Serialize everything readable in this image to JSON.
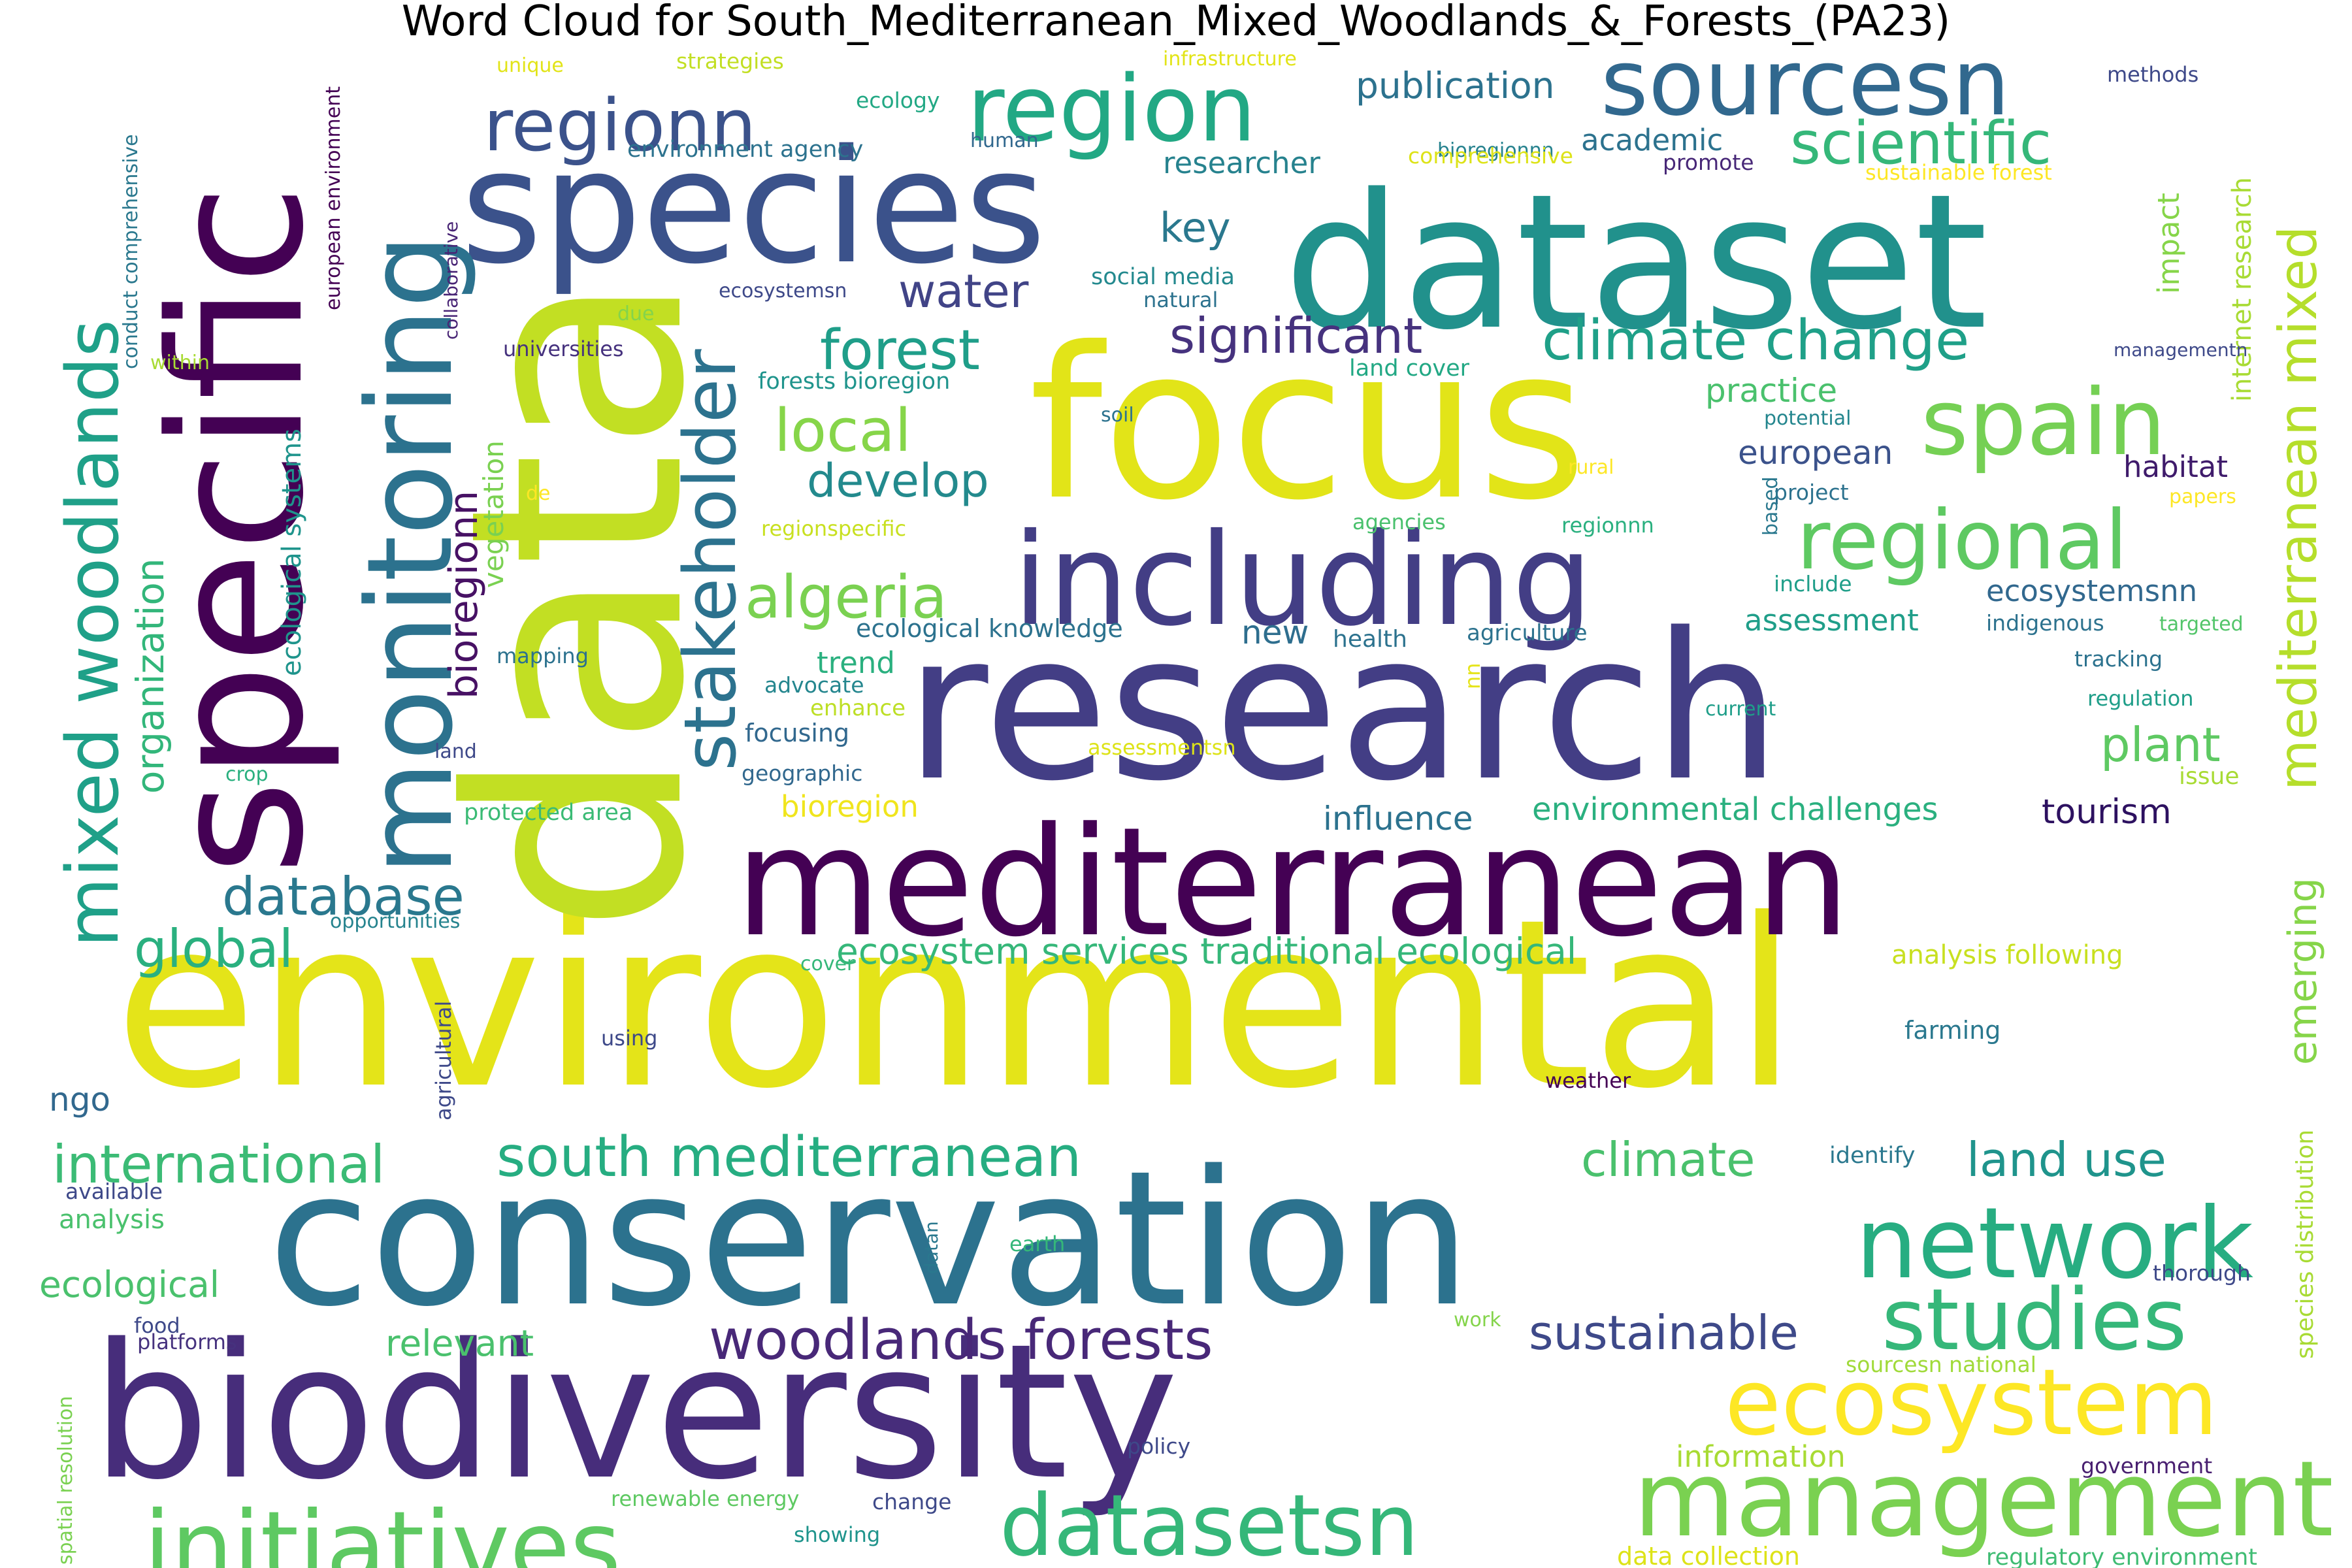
{
  "title": "Word Cloud for South_Mediterranean_Mixed_Woodlands_&_Forests_(PA23)",
  "words": [
    {
      "text": "environmental",
      "color": "#e4e419"
    },
    {
      "text": "data",
      "color": "#c2df23"
    },
    {
      "text": "research",
      "color": "#433e85"
    },
    {
      "text": "dataset",
      "color": "#21918c"
    },
    {
      "text": "focus",
      "color": "#e2e418"
    },
    {
      "text": "conservation",
      "color": "#2c728e"
    },
    {
      "text": "biodiversity",
      "color": "#472d7b"
    },
    {
      "text": "mediterranean",
      "color": "#440154"
    },
    {
      "text": "specific",
      "color": "#440154"
    },
    {
      "text": "species",
      "color": "#3b528b"
    },
    {
      "text": "including",
      "color": "#433e85"
    },
    {
      "text": "monitoring",
      "color": "#2c728e"
    },
    {
      "text": "management",
      "color": "#7ad151"
    },
    {
      "text": "network",
      "color": "#27ad81"
    },
    {
      "text": "initiatives",
      "color": "#5ec962"
    },
    {
      "text": "ecosystem",
      "color": "#fde725"
    },
    {
      "text": "region",
      "color": "#22a884"
    },
    {
      "text": "sourcesn",
      "color": "#31688e"
    },
    {
      "text": "regionn",
      "color": "#3b528b"
    },
    {
      "text": "spain",
      "color": "#75d054"
    },
    {
      "text": "regional",
      "color": "#5ec962"
    },
    {
      "text": "studies",
      "color": "#35b779"
    },
    {
      "text": "datasetsn",
      "color": "#35b779"
    },
    {
      "text": "mixed woodlands",
      "color": "#1fa088"
    },
    {
      "text": "stakeholder",
      "color": "#2c728e"
    },
    {
      "text": "scientific",
      "color": "#35b779"
    },
    {
      "text": "woodlands forests",
      "color": "#482878"
    },
    {
      "text": "climate change",
      "color": "#1fa088"
    },
    {
      "text": "south mediterranean",
      "color": "#26ad81"
    },
    {
      "text": "international",
      "color": "#3bbb75"
    },
    {
      "text": "mediterranean mixed",
      "color": "#b5de2b"
    },
    {
      "text": "forest",
      "color": "#1f9e89"
    },
    {
      "text": "local",
      "color": "#86d549"
    },
    {
      "text": "algeria",
      "color": "#7ad151"
    },
    {
      "text": "database",
      "color": "#2a788e"
    },
    {
      "text": "global",
      "color": "#2ab07f"
    },
    {
      "text": "sustainable",
      "color": "#3e4989"
    },
    {
      "text": "significant",
      "color": "#46327e"
    },
    {
      "text": "water",
      "color": "#414487"
    },
    {
      "text": "develop",
      "color": "#238a8d"
    },
    {
      "text": "climate",
      "color": "#4ac16d"
    },
    {
      "text": "land use",
      "color": "#1f948c"
    },
    {
      "text": "plant",
      "color": "#5ec962"
    },
    {
      "text": "bioregionn",
      "color": "#471164"
    },
    {
      "text": "organization",
      "color": "#32b67a"
    },
    {
      "text": "emerging",
      "color": "#86d549"
    },
    {
      "text": "key",
      "color": "#2a788e"
    },
    {
      "text": "publication",
      "color": "#2c728e"
    },
    {
      "text": "relevant",
      "color": "#4ac16d"
    },
    {
      "text": "ecological",
      "color": "#4ac16d"
    },
    {
      "text": "european",
      "color": "#3b528b"
    },
    {
      "text": "practice",
      "color": "#4ac16d"
    },
    {
      "text": "ecosystem services traditional ecological",
      "color": "#35b779"
    },
    {
      "text": "environmental challenges",
      "color": "#2ab07f"
    },
    {
      "text": "influence",
      "color": "#2c728e"
    },
    {
      "text": "tourism",
      "color": "#2d1160"
    },
    {
      "text": "academic",
      "color": "#2c728e"
    },
    {
      "text": "researcher",
      "color": "#26828e"
    },
    {
      "text": "assessment",
      "color": "#1f9e89"
    },
    {
      "text": "ecosystemsnn",
      "color": "#31688e"
    },
    {
      "text": "habitat",
      "color": "#3f1b6b"
    },
    {
      "text": "information",
      "color": "#a8db34"
    },
    {
      "text": "impact",
      "color": "#86d549"
    },
    {
      "text": "bioregion",
      "color": "#f0e51d"
    },
    {
      "text": "trend",
      "color": "#2ab07f"
    },
    {
      "text": "new",
      "color": "#2e6e8e"
    },
    {
      "text": "ngo",
      "color": "#31688e"
    },
    {
      "text": "vegetation",
      "color": "#7ad151"
    },
    {
      "text": "ecological systems",
      "color": "#1f948c"
    },
    {
      "text": "european environment",
      "color": "#440154"
    },
    {
      "text": "internet research",
      "color": "#a8db34"
    },
    {
      "text": "species distribution",
      "color": "#a8db34"
    },
    {
      "text": "ecological knowledge",
      "color": "#2c728e"
    },
    {
      "text": "environment agency",
      "color": "#2c728e"
    },
    {
      "text": "analysis following",
      "color": "#c8e020"
    },
    {
      "text": "forests bioregion",
      "color": "#1f948c"
    },
    {
      "text": "conduct comprehensive",
      "color": "#2a788e"
    },
    {
      "text": "sourcesn national",
      "color": "#a0da39"
    },
    {
      "text": "regulatory environment",
      "color": "#3fbc73"
    },
    {
      "text": "renewable energy",
      "color": "#5ec962"
    },
    {
      "text": "spatial resolution",
      "color": "#7ad151"
    },
    {
      "text": "data collection",
      "color": "#dde318"
    },
    {
      "text": "sustainable forest",
      "color": "#fde725"
    },
    {
      "text": "social media",
      "color": "#23898e"
    },
    {
      "text": "protected area",
      "color": "#3bbb75"
    },
    {
      "text": "land cover",
      "color": "#22a884"
    },
    {
      "text": "geographic",
      "color": "#31688e"
    },
    {
      "text": "advocate",
      "color": "#24868e"
    },
    {
      "text": "focusing",
      "color": "#31688e"
    },
    {
      "text": "enhance",
      "color": "#bddf26"
    },
    {
      "text": "health",
      "color": "#2c728e"
    },
    {
      "text": "agriculture",
      "color": "#2c728e"
    },
    {
      "text": "regionspecific",
      "color": "#c8e020"
    },
    {
      "text": "assessmentsn",
      "color": "#dde318"
    },
    {
      "text": "agencies",
      "color": "#4ac16d"
    },
    {
      "text": "regionnn",
      "color": "#2ab07f"
    },
    {
      "text": "rural",
      "color": "#fde725"
    },
    {
      "text": "project",
      "color": "#2c728e"
    },
    {
      "text": "include",
      "color": "#1f9e89"
    },
    {
      "text": "indigenous",
      "color": "#2c728e"
    },
    {
      "text": "targeted",
      "color": "#52c569"
    },
    {
      "text": "tracking",
      "color": "#2c728e"
    },
    {
      "text": "regulation",
      "color": "#1f9e89"
    },
    {
      "text": "issue",
      "color": "#a8db34"
    },
    {
      "text": "current",
      "color": "#1f9e89"
    },
    {
      "text": "farming",
      "color": "#2a788e"
    },
    {
      "text": "weather",
      "color": "#440154"
    },
    {
      "text": "identify",
      "color": "#2a788e"
    },
    {
      "text": "thorough",
      "color": "#3e4989"
    },
    {
      "text": "government",
      "color": "#481f70"
    },
    {
      "text": "policy",
      "color": "#3e4989"
    },
    {
      "text": "change",
      "color": "#3e4989"
    },
    {
      "text": "showing",
      "color": "#1f948c"
    },
    {
      "text": "earth",
      "color": "#35b779"
    },
    {
      "text": "datan",
      "color": "#2a788e"
    },
    {
      "text": "work",
      "color": "#84d44b"
    },
    {
      "text": "food",
      "color": "#3e4989"
    },
    {
      "text": "platforms",
      "color": "#46327e"
    },
    {
      "text": "available",
      "color": "#3e4989"
    },
    {
      "text": "analysis",
      "color": "#4ac16d"
    },
    {
      "text": "using",
      "color": "#3e4989"
    },
    {
      "text": "cover",
      "color": "#35b779"
    },
    {
      "text": "agricultural",
      "color": "#3e4989"
    },
    {
      "text": "opportunities",
      "color": "#25838e"
    },
    {
      "text": "crop",
      "color": "#2ab07f"
    },
    {
      "text": "land",
      "color": "#3e4989"
    },
    {
      "text": "mapping",
      "color": "#2c728e"
    },
    {
      "text": "de",
      "color": "#fde725"
    },
    {
      "text": "nn",
      "color": "#e5e419"
    },
    {
      "text": "universities",
      "color": "#46327e"
    },
    {
      "text": "within",
      "color": "#a8db34"
    },
    {
      "text": "due",
      "color": "#84d44b"
    },
    {
      "text": "collaborative",
      "color": "#482475"
    },
    {
      "text": "ecosystemsn",
      "color": "#3e4989"
    },
    {
      "text": "natural",
      "color": "#2c728e"
    },
    {
      "text": "soil",
      "color": "#2c728e"
    },
    {
      "text": "potential",
      "color": "#24868e"
    },
    {
      "text": "based",
      "color": "#2a788e"
    },
    {
      "text": "managementn",
      "color": "#3e4989"
    },
    {
      "text": "papers",
      "color": "#fde725"
    },
    {
      "text": "unique",
      "color": "#e2e418"
    },
    {
      "text": "strategies",
      "color": "#c2df23"
    },
    {
      "text": "ecology",
      "color": "#22a884"
    },
    {
      "text": "human",
      "color": "#31688e"
    },
    {
      "text": "infrastructure",
      "color": "#e2e418"
    },
    {
      "text": "bioregionnn",
      "color": "#26828e"
    },
    {
      "text": "methods",
      "color": "#3e4989"
    },
    {
      "text": "comprehensive",
      "color": "#dde318"
    },
    {
      "text": "promote",
      "color": "#482878"
    }
  ]
}
